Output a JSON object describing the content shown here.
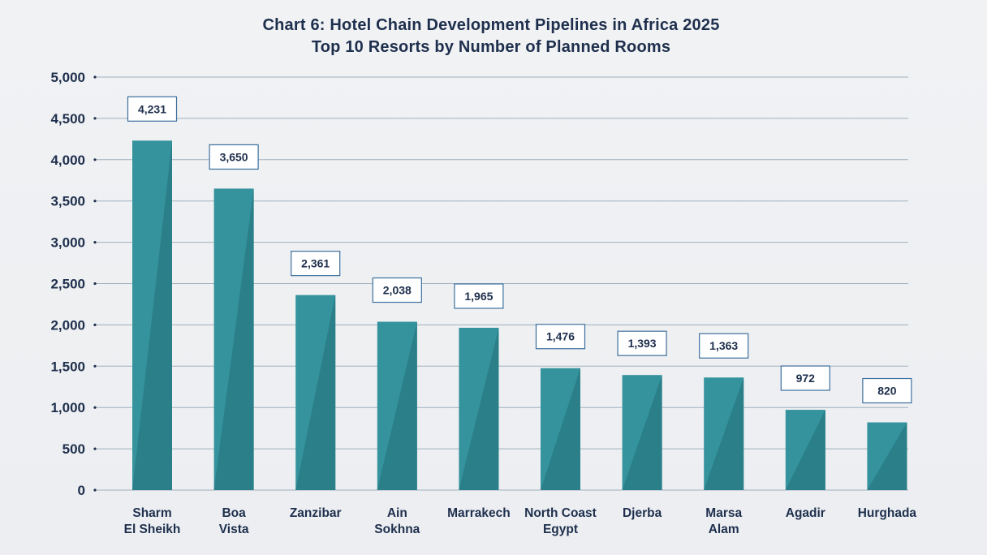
{
  "chart_data": {
    "type": "bar",
    "title": "Chart 6: Hotel Chain Development Pipelines in Africa 2025",
    "subtitle": "Top 10 Resorts by Number of Planned Rooms",
    "categories": [
      [
        "Sharm",
        "El Sheikh"
      ],
      [
        "Boa",
        "Vista"
      ],
      [
        "Zanzibar"
      ],
      [
        "Ain",
        "Sokhna"
      ],
      [
        "Marrakech"
      ],
      [
        "North Coast",
        "Egypt"
      ],
      [
        "Djerba"
      ],
      [
        "Marsa",
        "Alam"
      ],
      [
        "Agadir"
      ],
      [
        "Hurghada"
      ]
    ],
    "values": [
      4231,
      3650,
      2361,
      2038,
      1965,
      1476,
      1393,
      1363,
      972,
      820
    ],
    "value_labels": [
      "4,231",
      "3,650",
      "2,361",
      "2,038",
      "1,965",
      "1,476",
      "1,393",
      "1,363",
      "972",
      "820"
    ],
    "ylim": [
      0,
      5000
    ],
    "yticks": [
      0,
      500,
      1000,
      1500,
      2000,
      2500,
      3000,
      3500,
      4000,
      4500,
      5000
    ],
    "ytick_labels": [
      "0",
      "500",
      "1,000",
      "1,500",
      "2,000",
      "2,500",
      "3,000",
      "3,500",
      "4,000",
      "4,500",
      "5,000"
    ],
    "xlabel": "",
    "ylabel": "",
    "grid": true,
    "legend": "none",
    "colors": {
      "bar_light": "#35939d",
      "bar_dark": "#2a7f89",
      "grid": "#9fb0be",
      "text": "#1e2f4d",
      "label_border": "#3d6f9e",
      "label_bg": "#ffffff"
    }
  }
}
